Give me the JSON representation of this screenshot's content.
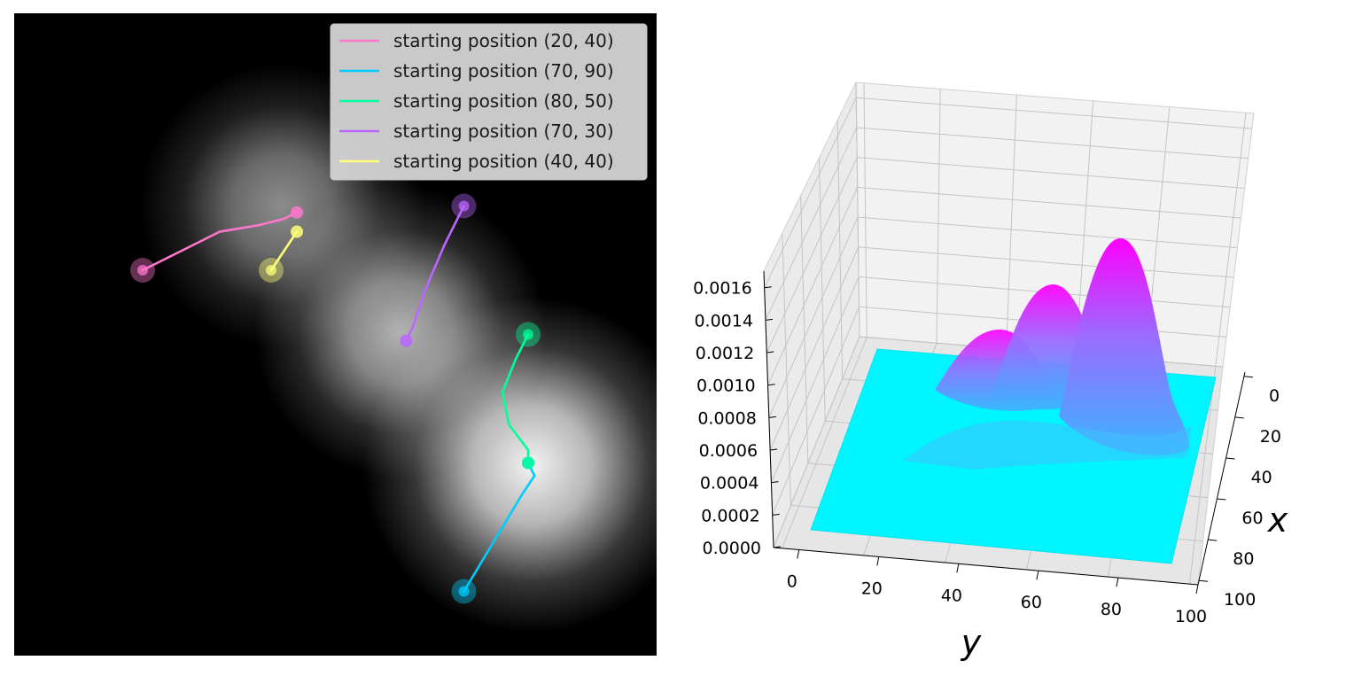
{
  "chart_data": [
    {
      "type": "line",
      "title": "",
      "xlabel": "",
      "ylabel": "",
      "axes_visible": false,
      "background": "grayscale image of three gaussian bright blobs",
      "xlim": [
        0,
        100
      ],
      "ylim": [
        0,
        100
      ],
      "legend_position": "top-right",
      "series": [
        {
          "name": "starting position (20, 40)",
          "color": "#ff77cc",
          "start": [
            20,
            40
          ],
          "points": [
            [
              20,
              40
            ],
            [
              26,
              37
            ],
            [
              32,
              34
            ],
            [
              38,
              33
            ],
            [
              42,
              32
            ],
            [
              44,
              31
            ]
          ]
        },
        {
          "name": "starting position (70, 90)",
          "color": "#00ccff",
          "start": [
            70,
            90
          ],
          "points": [
            [
              70,
              90
            ],
            [
              73,
              85
            ],
            [
              76,
              80
            ],
            [
              79,
              75
            ],
            [
              81,
              72
            ],
            [
              80,
              70
            ]
          ]
        },
        {
          "name": "starting position (80, 50)",
          "color": "#00ff99",
          "start": [
            80,
            50
          ],
          "points": [
            [
              80,
              50
            ],
            [
              78,
              54
            ],
            [
              76,
              59
            ],
            [
              77,
              64
            ],
            [
              80,
              68
            ],
            [
              80,
              70
            ]
          ]
        },
        {
          "name": "starting position (70, 30)",
          "color": "#bb66ff",
          "start": [
            70,
            30
          ],
          "points": [
            [
              70,
              30
            ],
            [
              67,
              36
            ],
            [
              64,
              43
            ],
            [
              62,
              49
            ],
            [
              61,
              51
            ]
          ]
        },
        {
          "name": "starting position (40, 40)",
          "color": "#ffff77",
          "start": [
            40,
            40
          ],
          "points": [
            [
              40,
              40
            ],
            [
              42,
              37
            ],
            [
              44,
              34
            ]
          ]
        }
      ]
    },
    {
      "type": "surface",
      "title": "",
      "xlabel": "x",
      "ylabel": "y",
      "zlabel": "",
      "colormap": "cool",
      "x_ticks": [
        "0",
        "20",
        "40",
        "60",
        "80",
        "100"
      ],
      "y_ticks": [
        "0",
        "20",
        "40",
        "60",
        "80",
        "100"
      ],
      "z_ticks": [
        "0.0000",
        "0.0002",
        "0.0004",
        "0.0006",
        "0.0008",
        "0.0010",
        "0.0012",
        "0.0014",
        "0.0016"
      ],
      "zlim": [
        0,
        0.0017
      ],
      "peaks": [
        {
          "x": 70,
          "y": 80,
          "height": 0.00165
        },
        {
          "x": 38,
          "y": 62,
          "height": 0.0012
        },
        {
          "x": 32,
          "y": 42,
          "height": 0.00085
        }
      ]
    }
  ]
}
